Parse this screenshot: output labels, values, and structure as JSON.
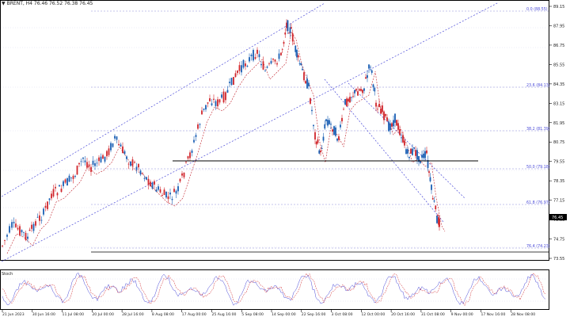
{
  "window": {
    "title": "BRENT, H4  76.46 76.52 76.38 76.45"
  },
  "colors": {
    "background": "#ffffff",
    "bull_candle": "#1a5fb4",
    "bear_candle": "#d0252b",
    "channel_line": "#4b4bd8",
    "moving_average": "#c0202a",
    "fib_line": "#8a8ad8",
    "support_line": "#000000",
    "grid": "#dcdcf0",
    "price_tag_bg": "#000000",
    "price_tag_text": "#ffffff"
  },
  "price_axis": {
    "labels": [
      "89.15",
      "87.95",
      "86.75",
      "85.55",
      "84.35",
      "83.15",
      "81.95",
      "80.75",
      "79.55",
      "78.35",
      "77.15",
      "75.95",
      "74.75",
      "73.55"
    ],
    "current_price": "76.45"
  },
  "fib_levels": [
    {
      "label": "0.0 (88.55)"
    },
    {
      "label": "23.6 (84.13)"
    },
    {
      "label": "38.2 (81.39)"
    },
    {
      "label": "50.0 (79.18)"
    },
    {
      "label": "61.8 (76.97)"
    },
    {
      "label": "76.4 (74.23)"
    }
  ],
  "oscillator": {
    "label": "Stoch"
  },
  "time_axis": {
    "labels": [
      "21 Jun 2023",
      "30 Jun 16:00",
      "11 Jul 08:00",
      "20 Jul 00:00",
      "28 Jul 16:00",
      "8 Aug 08:00",
      "17 Aug 00:00",
      "25 Aug 16:00",
      "5 Sep 08:00",
      "14 Sep 00:00",
      "22 Sep 16:00",
      "3 Oct 08:00",
      "12 Oct 00:00",
      "20 Oct 16:00",
      "31 Oct 08:00",
      "9 Nov 00:00",
      "17 Nov 16:00",
      "28 Nov 08:00"
    ]
  }
}
